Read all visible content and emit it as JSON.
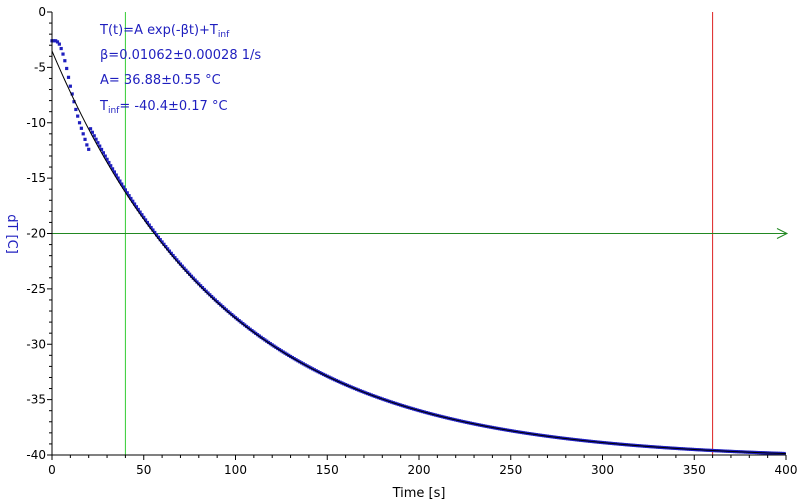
{
  "chart_data": {
    "type": "scatter",
    "xlabel": "Time [s]",
    "ylabel": "dT [C]",
    "xlim": [
      0,
      400
    ],
    "ylim": [
      -40,
      0
    ],
    "x_ticks": [
      0,
      50,
      100,
      150,
      200,
      250,
      300,
      350,
      400
    ],
    "y_ticks": [
      0,
      -5,
      -10,
      -15,
      -20,
      -25,
      -30,
      -35,
      -40
    ],
    "grid": false,
    "annotations": {
      "formula": {
        "main": "T(t)=A exp(-βt)+T",
        "sub": "inf"
      },
      "beta": "β=0.01062±0.00028 1/s",
      "amp": "A= 36.88±0.55 °C",
      "tinf": {
        "sub": "inf",
        "main": "= -40.4±0.17 °C",
        "prefix": "T"
      }
    },
    "fit": {
      "A": 36.88,
      "beta": 0.01062,
      "T_inf": -40.4,
      "x_range": [
        0,
        400
      ]
    },
    "early_points": [
      [
        0,
        -2.6
      ],
      [
        1,
        -2.6
      ],
      [
        2,
        -2.6
      ],
      [
        3,
        -2.7
      ],
      [
        4,
        -2.9
      ],
      [
        5,
        -3.3
      ],
      [
        6,
        -3.8
      ],
      [
        7,
        -4.4
      ],
      [
        8,
        -5.1
      ],
      [
        9,
        -5.9
      ],
      [
        10,
        -6.7
      ],
      [
        11,
        -7.4
      ],
      [
        12,
        -8.1
      ],
      [
        13,
        -8.8
      ],
      [
        14,
        -9.4
      ],
      [
        15,
        -10.0
      ],
      [
        16,
        -10.5
      ],
      [
        17,
        -11.0
      ],
      [
        18,
        -11.5
      ],
      [
        19,
        -12.0
      ],
      [
        20,
        -12.4
      ]
    ],
    "data_series": {
      "x_start": 21,
      "x_end": 399,
      "step": 1
    },
    "vertical_markers": [
      {
        "x": 40,
        "color": "#33cc33"
      },
      {
        "x": 360,
        "color": "#dd2222"
      }
    ],
    "horizontal_marker": {
      "y": -20,
      "color": "#228822"
    },
    "colors": {
      "data": "#1f1fbf",
      "fit": "#000000",
      "axis": "#000000"
    }
  }
}
